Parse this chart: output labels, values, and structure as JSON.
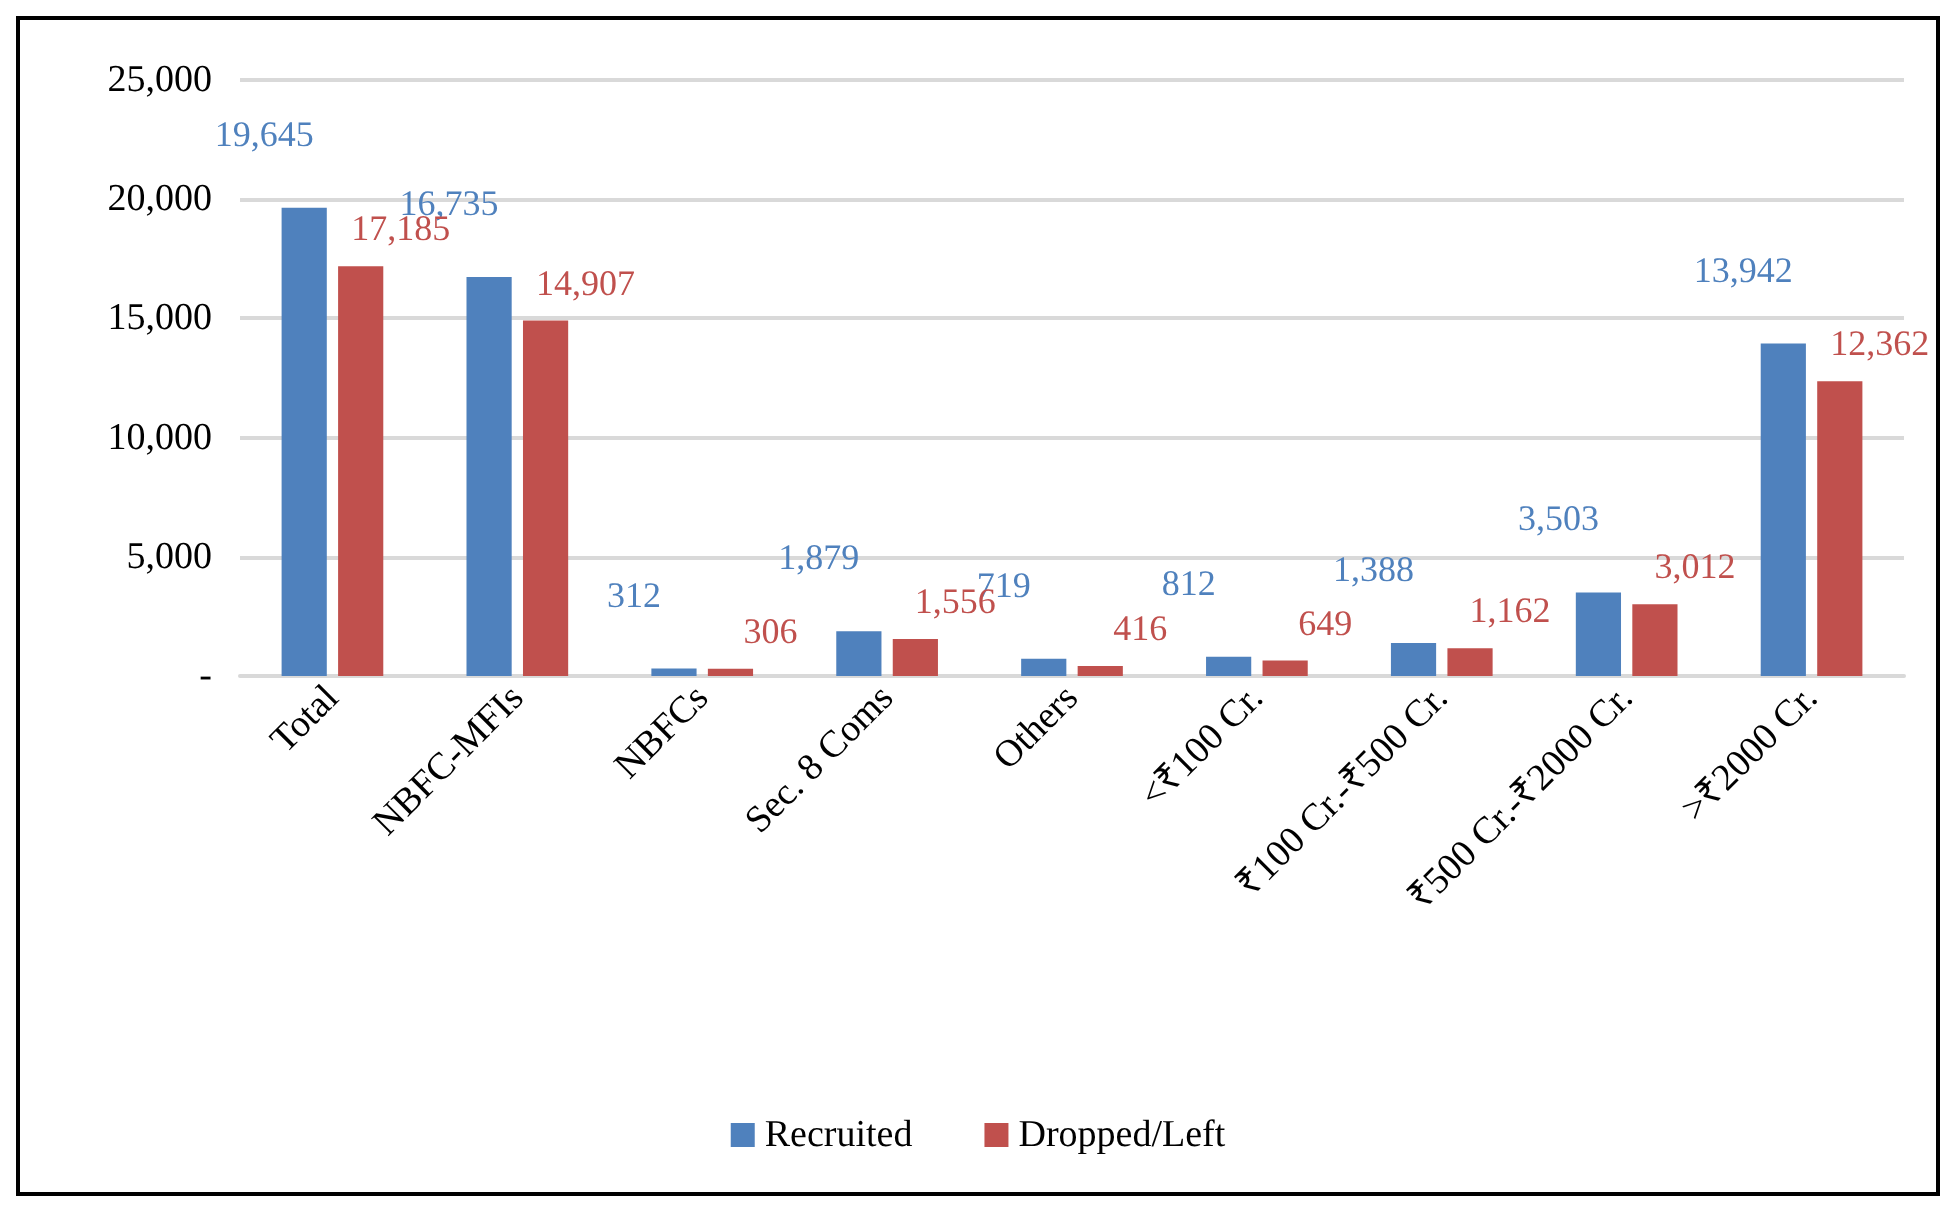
{
  "chart_data": {
    "type": "bar",
    "categories": [
      "Total",
      "NBFC-MFIs",
      "NBFCs",
      "Sec. 8 Coms",
      "Others",
      "<₹100 Cr.",
      "₹100 Cr.-₹500 Cr.",
      "₹500 Cr.-₹2000 Cr.",
      ">₹2000 Cr."
    ],
    "series": [
      {
        "name": "Recruited",
        "color": "#4f81bd",
        "values": [
          19645,
          16735,
          312,
          1879,
          719,
          812,
          1388,
          3503,
          13942
        ],
        "value_labels": [
          "19,645",
          "16,735",
          "312",
          "1,879",
          "719",
          "812",
          "1,388",
          "3,503",
          "13,942"
        ]
      },
      {
        "name": "Dropped/Left",
        "color": "#c0504d",
        "values": [
          17185,
          14907,
          306,
          1556,
          416,
          649,
          1162,
          3012,
          12362
        ],
        "value_labels": [
          "17,185",
          "14,907",
          "306",
          "1,556",
          "416",
          "649",
          "1,162",
          "3,012",
          "12,362"
        ]
      }
    ],
    "ylim": [
      0,
      25000
    ],
    "yticks": [
      {
        "value": 0,
        "label": "-"
      },
      {
        "value": 5000,
        "label": "5,000"
      },
      {
        "value": 10000,
        "label": "10,000"
      },
      {
        "value": 15000,
        "label": "15,000"
      },
      {
        "value": 20000,
        "label": "20,000"
      },
      {
        "value": 25000,
        "label": "25,000"
      }
    ],
    "grid": "y",
    "legend": "bottom"
  }
}
